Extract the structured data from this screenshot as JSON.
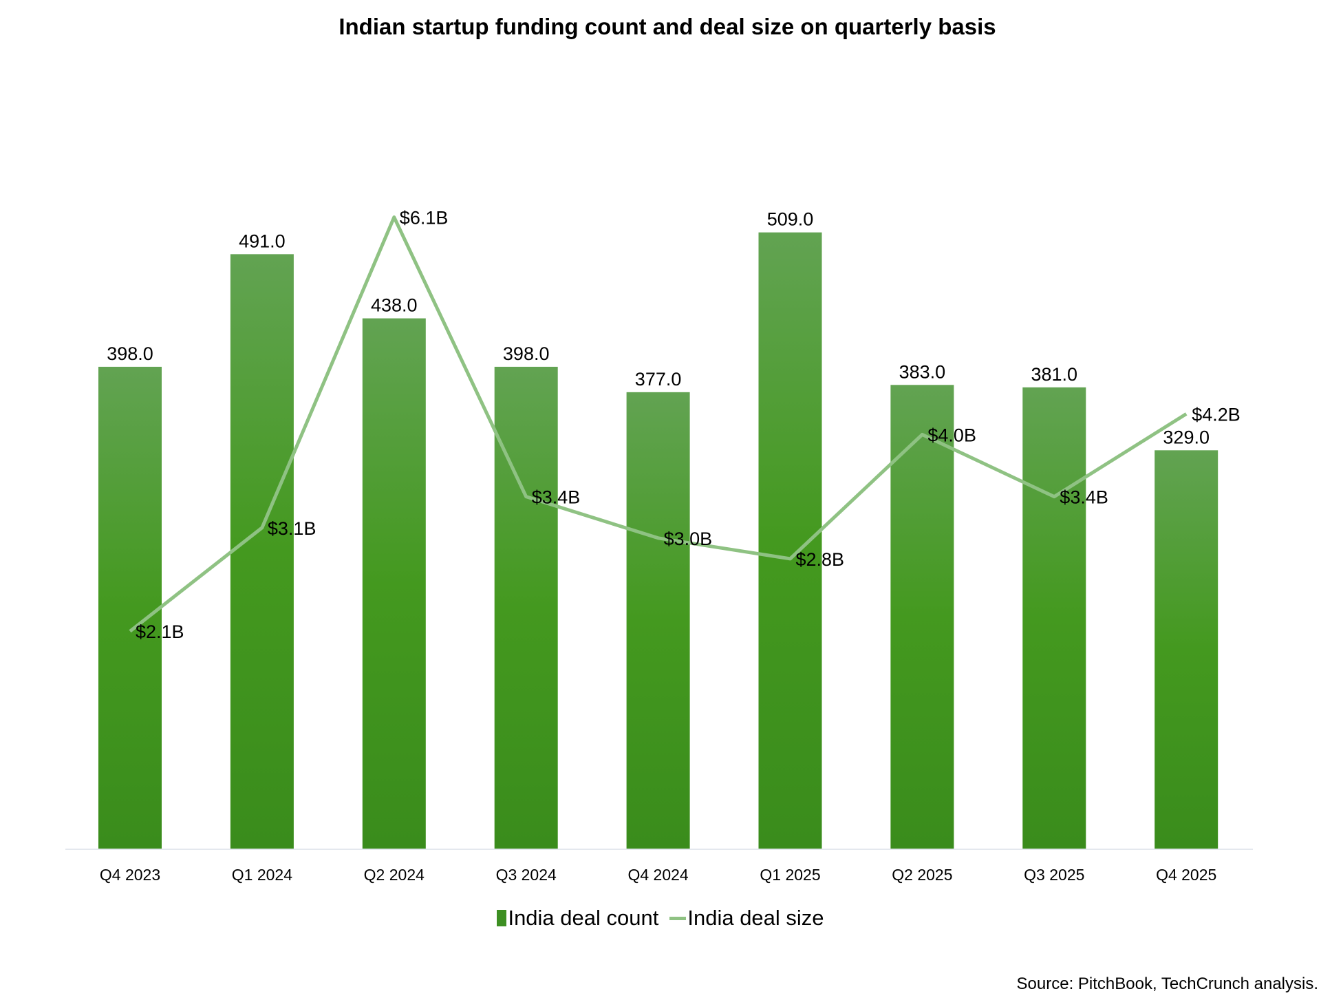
{
  "chart_data": {
    "type": "bar",
    "title": "Indian startup funding count and deal size on quarterly basis",
    "categories": [
      "Q4 2023",
      "Q1 2024",
      "Q2 2024",
      "Q3 2024",
      "Q4 2024",
      "Q1 2025",
      "Q2 2025",
      "Q3 2025",
      "Q4 2025"
    ],
    "series": [
      {
        "name": "India deal count",
        "type": "bar",
        "values": [
          398,
          491,
          438,
          398,
          377,
          509,
          383,
          381,
          329
        ],
        "labels": [
          "398.0",
          "491.0",
          "438.0",
          "398.0",
          "377.0",
          "509.0",
          "383.0",
          "381.0",
          "329.0"
        ],
        "color": "#3d8f22"
      },
      {
        "name": "India deal size",
        "type": "line",
        "unit": "USD billions",
        "values": [
          2.1,
          3.1,
          6.1,
          3.4,
          3.0,
          2.8,
          4.0,
          3.4,
          4.2
        ],
        "labels": [
          "$2.1B",
          "$3.1B",
          "$6.1B",
          "$3.4B",
          "$3.0B",
          "$2.8B",
          "$4.0B",
          "$3.4B",
          "$4.2B"
        ],
        "color": "#8fc283"
      }
    ],
    "grid": false,
    "legend": "bottom",
    "source": "Source: PitchBook, TechCrunch analysis."
  }
}
